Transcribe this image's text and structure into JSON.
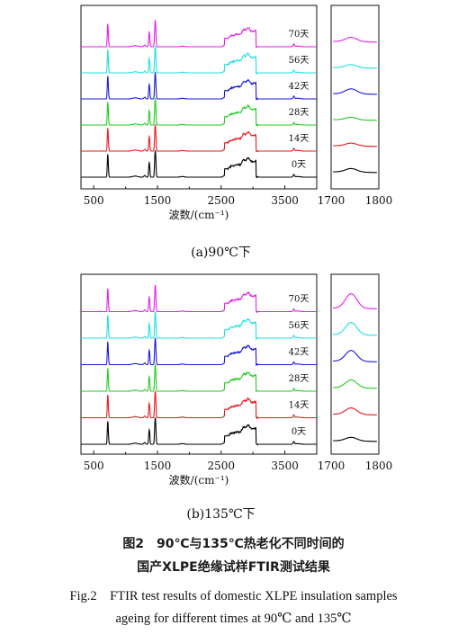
{
  "chart_data": [
    {
      "type": "line",
      "panel_label": "(a)90℃下",
      "xlabel": "波数/(cm⁻¹)",
      "xlim": [
        300,
        4000
      ],
      "x_ticks": [
        500,
        1500,
        2500,
        3500
      ],
      "inset_xlim": [
        1700,
        1800
      ],
      "inset_ticks": [
        1700,
        1800
      ],
      "series": [
        {
          "name": "0天",
          "color": "#000000",
          "carbonyl_peak": 0.25
        },
        {
          "name": "14天",
          "color": "#e8191d",
          "carbonyl_peak": 0.2
        },
        {
          "name": "28天",
          "color": "#22cc22",
          "carbonyl_peak": 0.18
        },
        {
          "name": "42天",
          "color": "#1a1ad6",
          "carbonyl_peak": 0.35
        },
        {
          "name": "56天",
          "color": "#1fe0e0",
          "carbonyl_peak": 0.22
        },
        {
          "name": "70天",
          "color": "#e61fe6",
          "carbonyl_peak": 0.3
        }
      ]
    },
    {
      "type": "line",
      "panel_label": "(b)135℃下",
      "xlabel": "波数/(cm⁻¹)",
      "xlim": [
        300,
        4000
      ],
      "x_ticks": [
        500,
        1500,
        2500,
        3500
      ],
      "inset_xlim": [
        1700,
        1800
      ],
      "inset_ticks": [
        1700,
        1800
      ],
      "series": [
        {
          "name": "0天",
          "color": "#000000",
          "carbonyl_peak": 0.25
        },
        {
          "name": "14天",
          "color": "#e8191d",
          "carbonyl_peak": 0.45
        },
        {
          "name": "28天",
          "color": "#22cc22",
          "carbonyl_peak": 0.55
        },
        {
          "name": "42天",
          "color": "#1a1ad6",
          "carbonyl_peak": 0.75
        },
        {
          "name": "56天",
          "color": "#1fe0e0",
          "carbonyl_peak": 0.85
        },
        {
          "name": "70天",
          "color": "#e61fe6",
          "carbonyl_peak": 1.0
        }
      ]
    }
  ],
  "caption": {
    "cn_line1": "图2　90℃与135℃热老化不同时间的",
    "cn_line2": "国产XLPE绝缘试样FTIR测试结果",
    "en_line1": "Fig.2　FTIR test results of domestic XLPE insulation samples",
    "en_line2": "ageing for different times at 90℃ and 135℃"
  }
}
